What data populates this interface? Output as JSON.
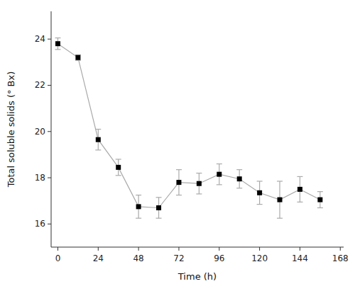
{
  "chart_data": {
    "type": "line",
    "x": [
      0,
      12,
      24,
      36,
      48,
      60,
      72,
      84,
      96,
      108,
      120,
      132,
      144,
      156
    ],
    "series": [
      {
        "values": [
          23.8,
          23.2,
          19.65,
          18.45,
          16.75,
          16.7,
          17.8,
          17.75,
          18.15,
          17.95,
          17.35,
          17.05,
          17.5,
          17.05
        ],
        "errors": [
          0.25,
          0.12,
          0.45,
          0.35,
          0.5,
          0.45,
          0.55,
          0.45,
          0.45,
          0.4,
          0.5,
          0.8,
          0.55,
          0.35
        ],
        "color": "#000000",
        "marker": "square"
      }
    ],
    "xlabel": "Time  (h)",
    "ylabel": "Total soluble solids  (° Bx)",
    "xlim": [
      -4,
      170
    ],
    "ylim": [
      15.0,
      25.2
    ],
    "xticks": [
      0,
      24,
      48,
      72,
      96,
      120,
      144,
      168
    ],
    "yticks": [
      16,
      18,
      20,
      22,
      24
    ],
    "grid": false
  }
}
